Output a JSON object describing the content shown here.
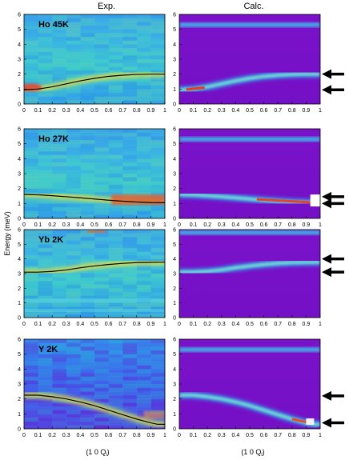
{
  "figure": {
    "column_titles": [
      "Exp.",
      "Calc."
    ],
    "ylabel": "Energy (meV)",
    "xlabel": "(1 0 Q",
    "xlabel_sub": "l",
    "xlabel_close": ")"
  },
  "chart_data": [
    {
      "type": "heatmap",
      "column": "Exp.",
      "row": 0,
      "label": "Ho 45K",
      "xlim": [
        0,
        1
      ],
      "ylim": [
        0,
        6
      ],
      "xticks": [
        "0",
        "0.1",
        "0.2",
        "0.3",
        "0.4",
        "0.5",
        "0.6",
        "0.7",
        "0.8",
        "0.9",
        "1"
      ],
      "yticks": [
        "0",
        "1",
        "2",
        "3",
        "4",
        "5",
        "6"
      ],
      "fit_curve": {
        "x": [
          0,
          0.1,
          0.2,
          0.3,
          0.4,
          0.5,
          0.6,
          0.7,
          0.8,
          0.9,
          1.0
        ],
        "y": [
          0.95,
          1.0,
          1.15,
          1.35,
          1.55,
          1.72,
          1.85,
          1.93,
          1.98,
          2.0,
          2.0
        ]
      }
    },
    {
      "type": "heatmap",
      "column": "Calc.",
      "row": 0,
      "xlim": [
        0,
        1
      ],
      "ylim": [
        0,
        6
      ],
      "xticks": [
        "0",
        "0.1",
        "0.2",
        "0.3",
        "0.4",
        "0.5",
        "0.6",
        "0.7",
        "0.8",
        "0.9",
        "1"
      ],
      "yticks": [
        "0",
        "1",
        "2",
        "3",
        "4",
        "5",
        "6"
      ],
      "arrows_energy": [
        2.0,
        0.95
      ]
    },
    {
      "type": "heatmap",
      "column": "Exp.",
      "row": 1,
      "label": "Ho 27K",
      "xlim": [
        0,
        1
      ],
      "ylim": [
        0,
        6
      ],
      "xticks": [
        "0",
        "0.1",
        "0.2",
        "0.3",
        "0.4",
        "0.5",
        "0.6",
        "0.7",
        "0.8",
        "0.9",
        "1"
      ],
      "yticks": [
        "0",
        "1",
        "2",
        "3",
        "4",
        "5",
        "6"
      ],
      "fit_curve": {
        "x": [
          0,
          0.1,
          0.2,
          0.3,
          0.4,
          0.5,
          0.6,
          0.7,
          0.8,
          0.9,
          1.0
        ],
        "y": [
          1.6,
          1.58,
          1.52,
          1.45,
          1.38,
          1.3,
          1.22,
          1.15,
          1.1,
          1.06,
          1.05
        ]
      }
    },
    {
      "type": "heatmap",
      "column": "Calc.",
      "row": 1,
      "xlim": [
        0,
        1
      ],
      "ylim": [
        0,
        6
      ],
      "xticks": [
        "0",
        "0.1",
        "0.2",
        "0.3",
        "0.4",
        "0.5",
        "0.6",
        "0.7",
        "0.8",
        "0.9",
        "1"
      ],
      "yticks": [
        "0",
        "1",
        "2",
        "3",
        "4",
        "5",
        "6"
      ],
      "arrows_energy": [
        1.45,
        1.0
      ]
    },
    {
      "type": "heatmap",
      "column": "Exp.",
      "row": 2,
      "label": "Yb  2K",
      "xlim": [
        0,
        1
      ],
      "ylim": [
        0,
        6
      ],
      "xticks": [
        "0",
        "0.1",
        "0.2",
        "0.3",
        "0.4",
        "0.5",
        "0.6",
        "0.7",
        "0.8",
        "0.9",
        "1"
      ],
      "yticks": [
        "0",
        "1",
        "2",
        "3",
        "4",
        "5",
        "6"
      ],
      "fit_curve": {
        "x": [
          0,
          0.1,
          0.2,
          0.3,
          0.4,
          0.5,
          0.6,
          0.7,
          0.8,
          0.9,
          1.0
        ],
        "y": [
          3.1,
          3.1,
          3.15,
          3.25,
          3.4,
          3.52,
          3.62,
          3.7,
          3.75,
          3.77,
          3.78
        ]
      }
    },
    {
      "type": "heatmap",
      "column": "Calc.",
      "row": 2,
      "xlim": [
        0,
        1
      ],
      "ylim": [
        0,
        6
      ],
      "xticks": [
        "0",
        "0.1",
        "0.2",
        "0.3",
        "0.4",
        "0.5",
        "0.6",
        "0.7",
        "0.8",
        "0.9",
        "1"
      ],
      "yticks": [
        "0",
        "1",
        "2",
        "3",
        "4",
        "5",
        "6"
      ],
      "arrows_energy": [
        4.0,
        3.1
      ]
    },
    {
      "type": "heatmap",
      "column": "Exp.",
      "row": 3,
      "label": "Y  2K",
      "xlim": [
        0,
        1
      ],
      "ylim": [
        0,
        6
      ],
      "xticks": [
        "0",
        "0.1",
        "0.2",
        "0.3",
        "0.4",
        "0.5",
        "0.6",
        "0.7",
        "0.8",
        "0.9",
        "1"
      ],
      "yticks": [
        "0",
        "1",
        "2",
        "3",
        "4",
        "5",
        "6"
      ],
      "fit_curve": {
        "x": [
          0,
          0.1,
          0.2,
          0.3,
          0.4,
          0.5,
          0.6,
          0.7,
          0.8,
          0.9,
          0.95,
          1.0
        ],
        "y": [
          2.25,
          2.25,
          2.15,
          2.0,
          1.8,
          1.55,
          1.25,
          0.95,
          0.65,
          0.4,
          0.3,
          0.3
        ]
      }
    },
    {
      "type": "heatmap",
      "column": "Calc.",
      "row": 3,
      "xlim": [
        0,
        1
      ],
      "ylim": [
        0,
        6
      ],
      "xticks": [
        "0",
        "0.1",
        "0.2",
        "0.3",
        "0.4",
        "0.5",
        "0.6",
        "0.7",
        "0.8",
        "0.9",
        "1"
      ],
      "yticks": [
        "0",
        "1",
        "2",
        "3",
        "4",
        "5",
        "6"
      ],
      "arrows_energy": [
        2.2,
        0.4
      ]
    }
  ]
}
